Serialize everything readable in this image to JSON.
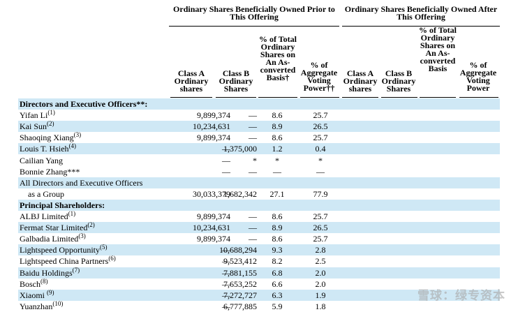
{
  "headers": {
    "prior_group": "Ordinary Shares Beneficially Owned Prior to This Offering",
    "after_group": "Ordinary Shares Beneficially Owned After This Offering",
    "prior_cols": [
      "Class A Ordinary shares",
      "Class B Ordinary Shares",
      "% of Total Ordinary Shares on An As-converted Basis†",
      "% of Aggregate Voting Power††"
    ],
    "after_cols": [
      "Class A Ordinary shares",
      "Class B Ordinary Shares",
      "% of Total Ordinary Shares on An As-converted Basis",
      "% of Aggregate Voting Power"
    ]
  },
  "rows": [
    {
      "name": "Directors and Executive Officers**:",
      "note": "",
      "section": true,
      "a": "",
      "b": "",
      "pct": "",
      "vote": ""
    },
    {
      "name": "Yifan Li",
      "note": "(1)",
      "a": "9,899,374",
      "b": "—",
      "pct": "8.6",
      "vote": "25.7"
    },
    {
      "name": "Kai Sun",
      "note": "(2)",
      "a": "10,234,631",
      "b": "—",
      "pct": "8.9",
      "vote": "26.5"
    },
    {
      "name": "Shaoqing Xiang",
      "note": "(3)",
      "a": "9,899,374",
      "b": "—",
      "pct": "8.6",
      "vote": "25.7"
    },
    {
      "name": "Louis T. Hsieh",
      "note": "(4)",
      "a": "—",
      "b": "1,375,000",
      "pct": "1.2",
      "vote": "0.4"
    },
    {
      "name": "Cailian Yang",
      "note": "",
      "a": "—",
      "b": "*",
      "pct": "*",
      "vote": "*"
    },
    {
      "name": "Bonnie Zhang***",
      "note": "",
      "a": "—",
      "b": "—",
      "pct": "—",
      "vote": "—"
    },
    {
      "name": "All Directors and Executive Officers",
      "note": "",
      "a": "",
      "b": "",
      "pct": "",
      "vote": ""
    },
    {
      "name": "as a Group",
      "note": "",
      "indent": true,
      "a": "30,033,379",
      "b": "1,682,342",
      "pct": "27.1",
      "vote": "77.9"
    },
    {
      "name": "Principal Shareholders:",
      "note": "",
      "section": true,
      "a": "",
      "b": "",
      "pct": "",
      "vote": ""
    },
    {
      "name": "ALBJ Limited",
      "note": "(1)",
      "a": "9,899,374",
      "b": "—",
      "pct": "8.6",
      "vote": "25.7"
    },
    {
      "name": "Fermat Star Limited",
      "note": "(2)",
      "a": "10,234,631",
      "b": "—",
      "pct": "8.9",
      "vote": "26.5"
    },
    {
      "name": "Galbadia Limited",
      "note": "(3)",
      "a": "9,899,374",
      "b": "—",
      "pct": "8.6",
      "vote": "25.7"
    },
    {
      "name": "Lightspeed Opportunity",
      "note": "(5)",
      "a": "—",
      "b": "10,688,294",
      "pct": "9.3",
      "vote": "2.8"
    },
    {
      "name": "Lightspeed China Partners",
      "note": "(6)",
      "a": "—",
      "b": "9,523,412",
      "pct": "8.2",
      "vote": "2.5"
    },
    {
      "name": "Baidu Holdings",
      "note": "(7)",
      "a": "—",
      "b": "7,881,155",
      "pct": "6.8",
      "vote": "2.0"
    },
    {
      "name": "Bosch",
      "note": "(8)",
      "a": "—",
      "b": "7,653,252",
      "pct": "6.6",
      "vote": "2.0"
    },
    {
      "name": "Xiaomi ",
      "note": "(9)",
      "a": "—",
      "b": "7,272,727",
      "pct": "6.3",
      "vote": "1.9"
    },
    {
      "name": "Yuanzhan",
      "note": "(10)",
      "a": "—",
      "b": "6,777,885",
      "pct": "5.9",
      "vote": "1.8"
    }
  ],
  "watermark": "雪球：绿专资本"
}
